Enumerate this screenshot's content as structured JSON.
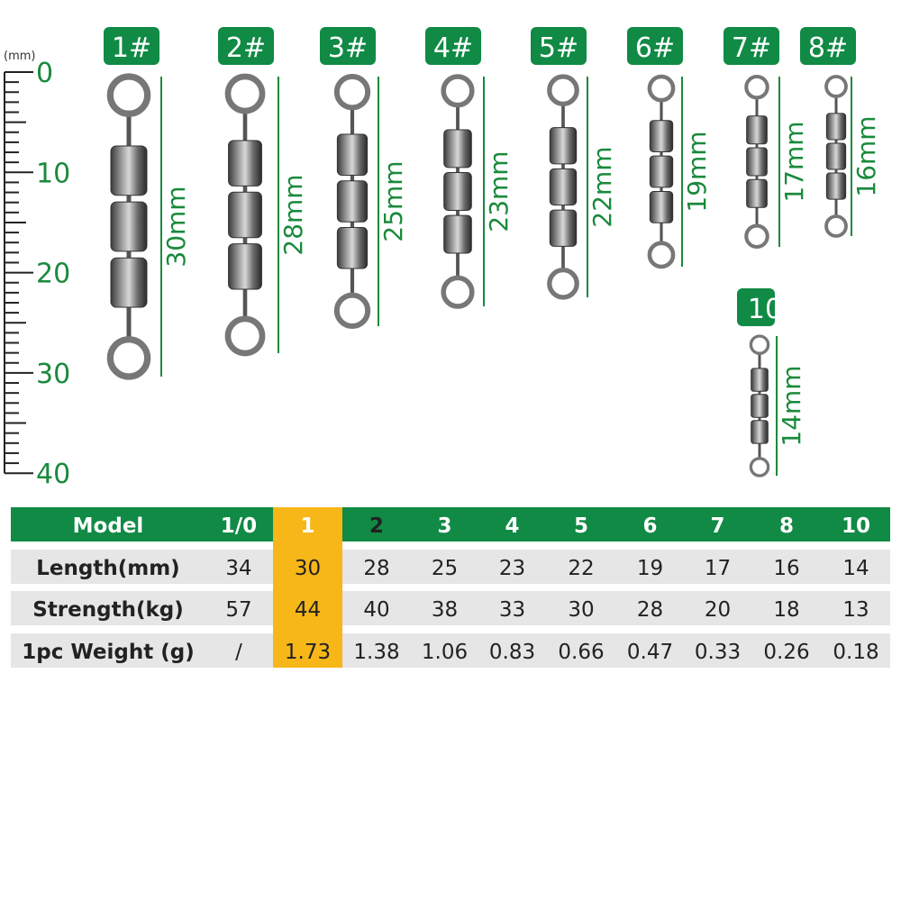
{
  "ruler": {
    "unit": "(mm)",
    "labels": [
      "0",
      "10",
      "20",
      "30",
      "40"
    ]
  },
  "items": [
    {
      "badge": "1#",
      "length": "30mm"
    },
    {
      "badge": "2#",
      "length": "28mm"
    },
    {
      "badge": "3#",
      "length": "25mm"
    },
    {
      "badge": "4#",
      "length": "23mm"
    },
    {
      "badge": "5#",
      "length": "22mm"
    },
    {
      "badge": "6#",
      "length": "19mm"
    },
    {
      "badge": "7#",
      "length": "17mm"
    },
    {
      "badge": "8#",
      "length": "16mm"
    },
    {
      "badge": "10",
      "length": "14mm"
    }
  ],
  "table": {
    "header": [
      "Model",
      "1/0",
      "1",
      "2",
      "3",
      "4",
      "5",
      "6",
      "7",
      "8",
      "10"
    ],
    "rows": [
      [
        "Length(mm)",
        34,
        30,
        28,
        25,
        23,
        22,
        19,
        17,
        16,
        14
      ],
      [
        "Strength(kg)",
        57,
        44,
        40,
        38,
        33,
        30,
        28,
        20,
        18,
        13
      ],
      [
        "1pc Weight (g)",
        "/",
        1.73,
        1.38,
        1.06,
        0.83,
        0.66,
        0.47,
        0.33,
        0.26,
        0.18
      ]
    ],
    "highlight_column": 3,
    "highlight_color": "#f7b718",
    "header_color": "#108a45"
  }
}
